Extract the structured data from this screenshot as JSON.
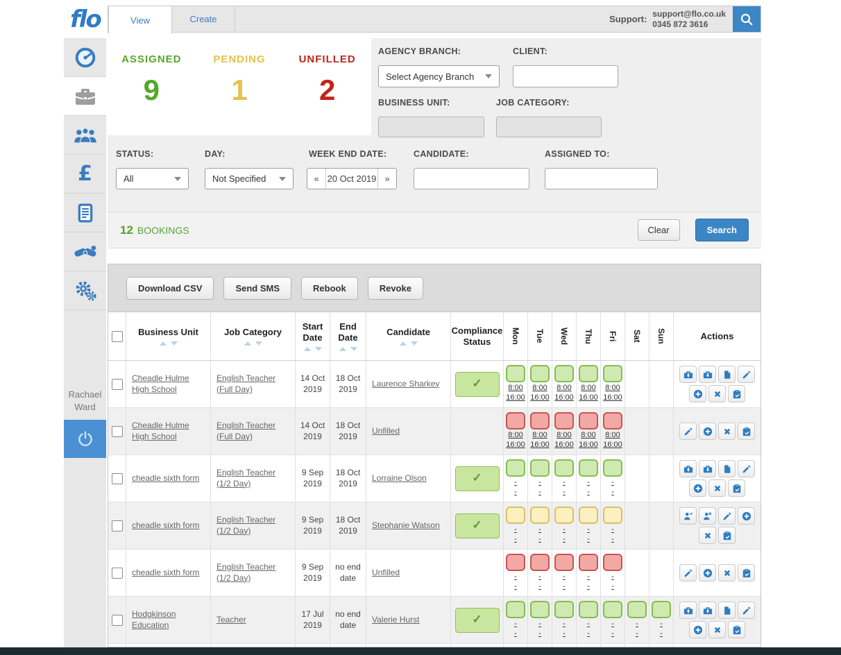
{
  "header": {
    "logo": "flo",
    "tabs": [
      {
        "label": "View",
        "active": true
      },
      {
        "label": "Create",
        "active": false
      }
    ],
    "support_label": "Support:",
    "support_email": "support@flo.co.uk",
    "support_phone": "0345 872 3616"
  },
  "sidebar": {
    "user_name": "Rachael Ward",
    "items": [
      {
        "name": "dashboard",
        "active": false
      },
      {
        "name": "bookings",
        "active": true
      },
      {
        "name": "candidates",
        "active": false
      },
      {
        "name": "finance",
        "active": false
      },
      {
        "name": "documents",
        "active": false
      },
      {
        "name": "clients",
        "active": false
      },
      {
        "name": "settings",
        "active": false
      }
    ]
  },
  "stats": [
    {
      "label": "ASSIGNED",
      "value": "9",
      "color": "#56a829"
    },
    {
      "label": "PENDING",
      "value": "1",
      "color": "#e5c24e"
    },
    {
      "label": "UNFILLED",
      "value": "2",
      "color": "#c2241a"
    }
  ],
  "filters": {
    "agency_branch_label": "AGENCY BRANCH:",
    "agency_branch_value": "Select Agency Branch",
    "client_label": "CLIENT:",
    "client_value": "",
    "business_unit_label": "BUSINESS UNIT:",
    "business_unit_value": "",
    "job_category_label": "JOB CATEGORY:",
    "job_category_value": "",
    "status_label": "STATUS:",
    "status_value": "All",
    "day_label": "DAY:",
    "day_value": "Not Specified",
    "week_end_label": "WEEK END DATE:",
    "week_prev": "«",
    "week_end_value": "20 Oct 2019",
    "week_next": "»",
    "candidate_label": "CANDIDATE:",
    "candidate_value": "",
    "assigned_to_label": "ASSIGNED TO:",
    "assigned_to_value": ""
  },
  "results": {
    "count": "12",
    "count_label": "BOOKINGS",
    "clear_label": "Clear",
    "search_label": "Search"
  },
  "toolbar": {
    "buttons": [
      "Download CSV",
      "Send SMS",
      "Rebook",
      "Revoke"
    ]
  },
  "table": {
    "columns": [
      "Business Unit",
      "Job Category",
      "Start Date",
      "End Date",
      "Candidate",
      "Compliance Status"
    ],
    "day_columns": [
      "Mon",
      "Tue",
      "Wed",
      "Thu",
      "Fri",
      "Sat",
      "Sun"
    ],
    "actions_column": "Actions",
    "check_glyph": "✓",
    "rows": [
      {
        "business_unit": "Cheadle Hulme High School",
        "job_category": "English Teacher (Full Day)",
        "start_date": "14 Oct 2019",
        "end_date": "18 Oct 2019",
        "candidate": "Laurence Sharkey",
        "compliant": true,
        "days": [
          {
            "state": "green",
            "lines": [
              "8:00",
              "16:00"
            ]
          },
          {
            "state": "green",
            "lines": [
              "8:00",
              "16:00"
            ]
          },
          {
            "state": "green",
            "lines": [
              "8:00",
              "16:00"
            ]
          },
          {
            "state": "green",
            "lines": [
              "8:00",
              "16:00"
            ]
          },
          {
            "state": "green",
            "lines": [
              "8:00",
              "16:00"
            ]
          },
          null,
          null
        ],
        "actions": [
          "briefcase-up",
          "briefcase-down",
          "copy",
          "edit",
          "add",
          "cancel",
          "clipboard-check"
        ]
      },
      {
        "business_unit": "Cheadle Hulme High School",
        "job_category": "English Teacher (Full Day)",
        "start_date": "14 Oct 2019",
        "end_date": "18 Oct 2019",
        "candidate": "Unfilled",
        "compliant": false,
        "days": [
          {
            "state": "red",
            "lines": [
              "8:00",
              "16:00"
            ]
          },
          {
            "state": "red",
            "lines": [
              "8:00",
              "16:00"
            ]
          },
          {
            "state": "red",
            "lines": [
              "8:00",
              "16:00"
            ]
          },
          {
            "state": "red",
            "lines": [
              "8:00",
              "16:00"
            ]
          },
          {
            "state": "red",
            "lines": [
              "8:00",
              "16:00"
            ]
          },
          null,
          null
        ],
        "actions": [
          "edit",
          "add",
          "cancel",
          "clipboard-check"
        ]
      },
      {
        "business_unit": "cheadle sixth form",
        "job_category": "English Teacher (1/2 Day)",
        "start_date": "9 Sep 2019",
        "end_date": "18 Oct 2019",
        "candidate": "Lorraine Olson",
        "compliant": true,
        "days": [
          {
            "state": "green",
            "lines": [
              "-",
              "-"
            ]
          },
          {
            "state": "green",
            "lines": [
              "-",
              "-"
            ]
          },
          {
            "state": "green",
            "lines": [
              "-",
              "-"
            ]
          },
          {
            "state": "green",
            "lines": [
              "-",
              "-"
            ]
          },
          {
            "state": "green",
            "lines": [
              "-",
              "-"
            ]
          },
          null,
          null
        ],
        "actions": [
          "briefcase-up",
          "briefcase-down",
          "copy",
          "edit",
          "add",
          "cancel",
          "clipboard-check"
        ]
      },
      {
        "business_unit": "cheadle sixth form",
        "job_category": "English Teacher (1/2 Day)",
        "start_date": "9 Sep 2019",
        "end_date": "18 Oct 2019",
        "candidate": "Stephanie Watson",
        "compliant": true,
        "days": [
          {
            "state": "yellow",
            "lines": [
              "-",
              "-"
            ]
          },
          {
            "state": "yellow",
            "lines": [
              "-",
              "-"
            ]
          },
          {
            "state": "yellow",
            "lines": [
              "-",
              "-"
            ]
          },
          {
            "state": "yellow",
            "lines": [
              "-",
              "-"
            ]
          },
          {
            "state": "yellow",
            "lines": [
              "-",
              "-"
            ]
          },
          null,
          null
        ],
        "actions": [
          "person-check",
          "person-x",
          "edit",
          "add",
          "cancel",
          "clipboard-check"
        ]
      },
      {
        "business_unit": "cheadle sixth form",
        "job_category": "English Teacher (1/2 Day)",
        "start_date": "9 Sep 2019",
        "end_date": "no end date",
        "candidate": "Unfilled",
        "compliant": false,
        "days": [
          {
            "state": "red",
            "lines": [
              "-",
              "-"
            ]
          },
          {
            "state": "red",
            "lines": [
              "-",
              "-"
            ]
          },
          {
            "state": "red",
            "lines": [
              "-",
              "-"
            ]
          },
          {
            "state": "red",
            "lines": [
              "-",
              "-"
            ]
          },
          {
            "state": "red",
            "lines": [
              "-",
              "-"
            ]
          },
          null,
          null
        ],
        "actions": [
          "edit",
          "add",
          "cancel",
          "clipboard-check"
        ]
      },
      {
        "business_unit": "Hodgkinson Education",
        "job_category": "Teacher",
        "start_date": "17 Jul 2019",
        "end_date": "no end date",
        "candidate": "Valerie Hurst",
        "compliant": true,
        "days": [
          {
            "state": "green",
            "lines": [
              "-",
              "-"
            ]
          },
          {
            "state": "green",
            "lines": [
              "-",
              "-"
            ]
          },
          {
            "state": "green",
            "lines": [
              "-",
              "-"
            ]
          },
          {
            "state": "green",
            "lines": [
              "-",
              "-"
            ]
          },
          {
            "state": "green",
            "lines": [
              "-",
              "-"
            ]
          },
          {
            "state": "green",
            "lines": [
              "-",
              "-"
            ]
          },
          {
            "state": "green",
            "lines": [
              "-",
              "-"
            ]
          }
        ],
        "actions": [
          "briefcase-up",
          "briefcase-down",
          "copy",
          "edit",
          "add",
          "cancel",
          "clipboard-check"
        ]
      }
    ]
  },
  "colors": {
    "accent_blue": "#3d86c6",
    "assigned_green": "#56a829",
    "pending_yellow": "#e5c24e",
    "unfilled_red": "#c2241a",
    "slot_green": "#cfeab0",
    "slot_red": "#f1a9a6",
    "slot_yellow": "#fcf0c0"
  }
}
